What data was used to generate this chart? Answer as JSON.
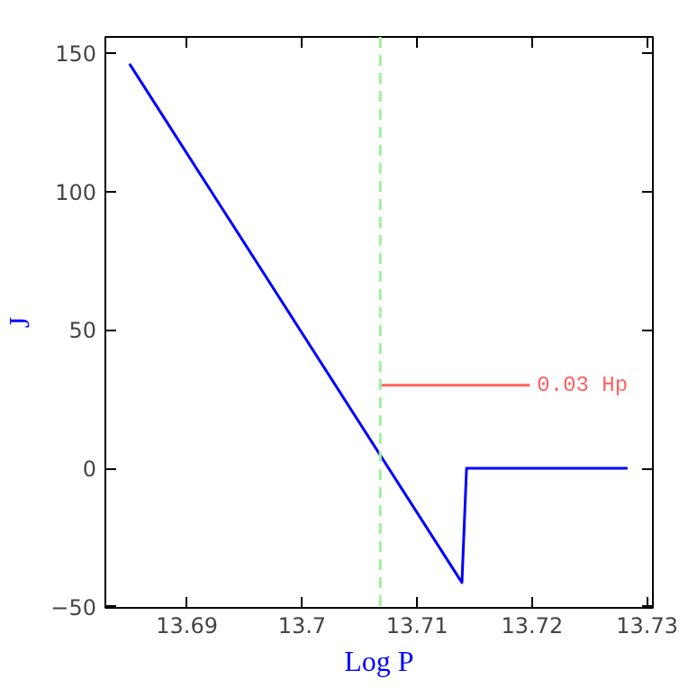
{
  "chart_data": {
    "type": "line",
    "xlabel": "Log P",
    "ylabel": "J",
    "xlim": [
      13.6829,
      13.7305
    ],
    "ylim": [
      -50.4,
      155.8
    ],
    "xticks": [
      13.69,
      13.7,
      13.71,
      13.72,
      13.73
    ],
    "yticks": [
      -50,
      0,
      50,
      100,
      150
    ],
    "grid": false,
    "series": [
      {
        "color": "#0000ff",
        "x": [
          13.685,
          13.7139,
          13.7143,
          13.7283
        ],
        "values": [
          146.1,
          -41.3,
          0,
          0
        ]
      },
      {
        "color": "#ff6060",
        "x": [
          13.7068,
          13.7198
        ],
        "values": [
          30,
          30
        ]
      }
    ],
    "ref_lines": [
      {
        "axis": "x",
        "value": 13.7068,
        "color": "#a0f0a0",
        "line_style": "dashed"
      }
    ],
    "annotations": [
      {
        "text": "0.03 Hp",
        "x": 13.7198,
        "y": 30
      }
    ]
  }
}
